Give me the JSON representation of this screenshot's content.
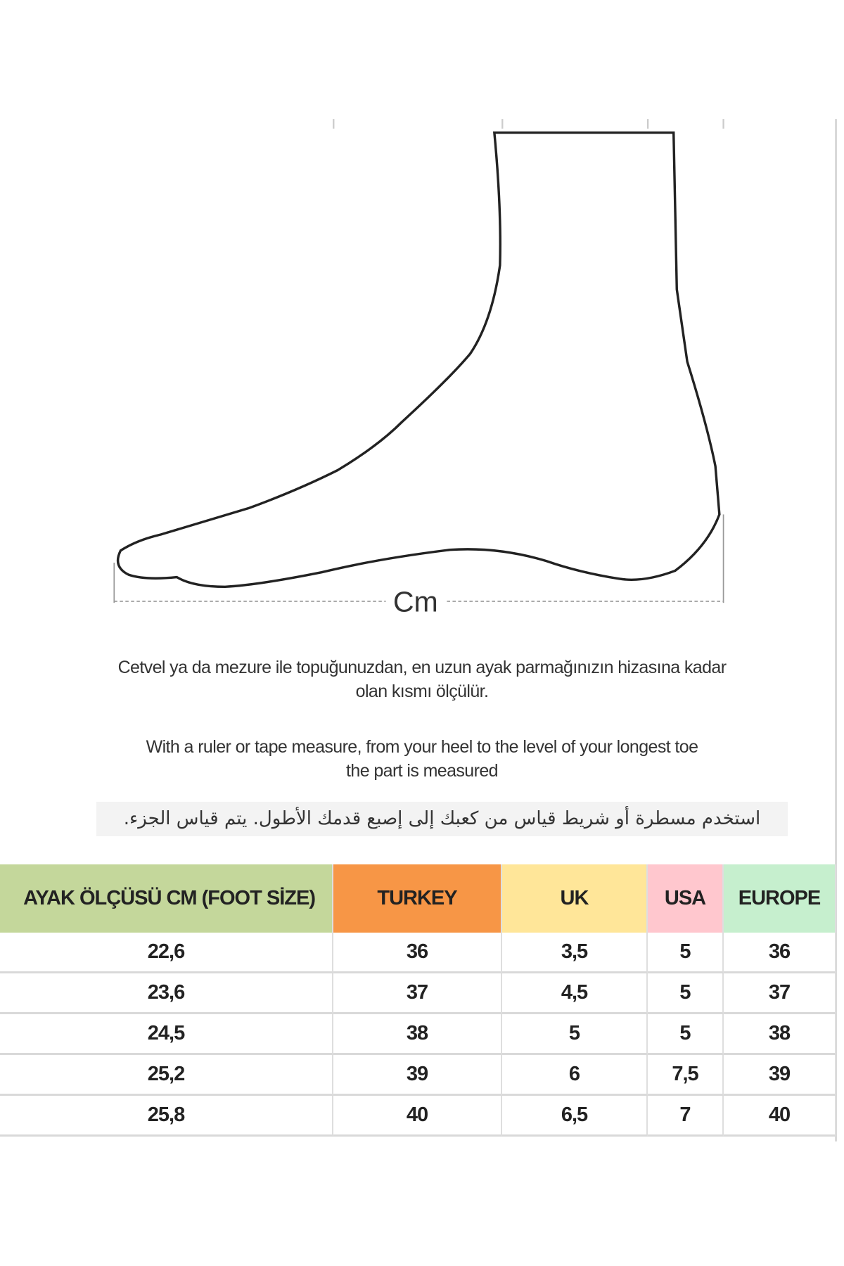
{
  "diagram": {
    "dimension_label": "Cm"
  },
  "instructions": {
    "turkish_line1": "Cetvel ya da mezure ile topuğunuzdan, en uzun ayak parmağınızın hizasına kadar",
    "turkish_line2": "olan kısmı ölçülür.",
    "english_line1": "With a ruler or tape measure, from your heel to the level of your longest toe",
    "english_line2": "the part is measured",
    "arabic": "استخدم مسطرة أو شريط قياس من  كعبك إلى إصبع قدمك الأطول.  يتم قياس الجزء."
  },
  "table": {
    "headers": [
      "AYAK ÖLÇÜSÜ CM (FOOT SİZE)",
      "TURKEY",
      "UK",
      "USA",
      "EUROPE"
    ],
    "header_colors": [
      "#c4d79b",
      "#f79646",
      "#ffe699",
      "#ffc7ce",
      "#c6efce"
    ],
    "rows": [
      [
        "22,6",
        "36",
        "3,5",
        "5",
        "36"
      ],
      [
        "23,6",
        "37",
        "4,5",
        "5",
        "37"
      ],
      [
        "24,5",
        "38",
        "5",
        "5",
        "38"
      ],
      [
        "25,2",
        "39",
        "6",
        "7,5",
        "39"
      ],
      [
        "25,8",
        "40",
        "6,5",
        "7",
        "40"
      ]
    ]
  }
}
